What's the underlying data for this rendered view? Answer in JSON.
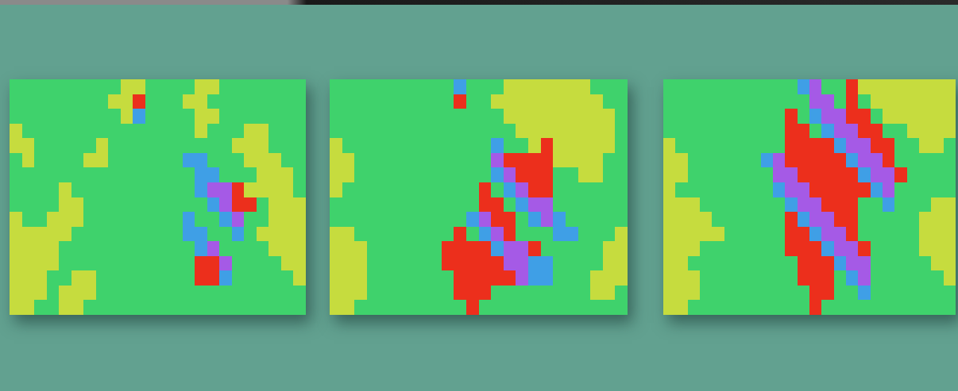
{
  "chart_data": [
    {
      "type": "heatmap",
      "tick_labels": false,
      "colors": [
        "#3fd26c",
        "#c6dc3e",
        "#3f9fe6",
        "#a55ae6",
        "#ec2f1c"
      ],
      "cells": [
        [
          0,
          0,
          0,
          0,
          0,
          0,
          0,
          0,
          0,
          1,
          1,
          0,
          0,
          0,
          0,
          1,
          1,
          0,
          0,
          0,
          0,
          0,
          0,
          0
        ],
        [
          0,
          0,
          0,
          0,
          0,
          0,
          0,
          0,
          1,
          1,
          4,
          0,
          0,
          0,
          1,
          1,
          0,
          0,
          0,
          0,
          0,
          0,
          0,
          0
        ],
        [
          0,
          0,
          0,
          0,
          0,
          0,
          0,
          0,
          0,
          1,
          2,
          0,
          0,
          0,
          0,
          1,
          1,
          0,
          0,
          0,
          0,
          0,
          0,
          0
        ],
        [
          1,
          0,
          0,
          0,
          0,
          0,
          0,
          0,
          0,
          0,
          0,
          0,
          0,
          0,
          0,
          1,
          0,
          0,
          0,
          1,
          1,
          0,
          0,
          0
        ],
        [
          1,
          1,
          0,
          0,
          0,
          0,
          0,
          1,
          0,
          0,
          0,
          0,
          0,
          0,
          0,
          0,
          0,
          0,
          1,
          1,
          1,
          0,
          0,
          0
        ],
        [
          0,
          1,
          0,
          0,
          0,
          0,
          1,
          1,
          0,
          0,
          0,
          0,
          0,
          0,
          2,
          2,
          0,
          0,
          0,
          1,
          1,
          1,
          0,
          0
        ],
        [
          0,
          0,
          0,
          0,
          0,
          0,
          0,
          0,
          0,
          0,
          0,
          0,
          0,
          0,
          0,
          2,
          2,
          0,
          0,
          0,
          1,
          1,
          1,
          0
        ],
        [
          0,
          0,
          0,
          0,
          1,
          0,
          0,
          0,
          0,
          0,
          0,
          0,
          0,
          0,
          0,
          2,
          3,
          3,
          4,
          1,
          1,
          1,
          1,
          0
        ],
        [
          0,
          0,
          0,
          0,
          1,
          1,
          0,
          0,
          0,
          0,
          0,
          0,
          0,
          0,
          0,
          0,
          2,
          3,
          4,
          4,
          0,
          1,
          1,
          1
        ],
        [
          1,
          0,
          0,
          1,
          1,
          1,
          0,
          0,
          0,
          0,
          0,
          0,
          0,
          0,
          2,
          0,
          0,
          2,
          3,
          0,
          0,
          1,
          1,
          1
        ],
        [
          1,
          1,
          1,
          1,
          1,
          0,
          0,
          0,
          0,
          0,
          0,
          0,
          0,
          0,
          2,
          2,
          0,
          0,
          2,
          0,
          1,
          1,
          1,
          1
        ],
        [
          1,
          1,
          1,
          1,
          0,
          0,
          0,
          0,
          0,
          0,
          0,
          0,
          0,
          0,
          0,
          2,
          3,
          0,
          0,
          0,
          0,
          1,
          1,
          1
        ],
        [
          1,
          1,
          1,
          1,
          0,
          0,
          0,
          0,
          0,
          0,
          0,
          0,
          0,
          0,
          0,
          4,
          4,
          3,
          0,
          0,
          0,
          0,
          1,
          1
        ],
        [
          1,
          1,
          1,
          0,
          0,
          1,
          1,
          0,
          0,
          0,
          0,
          0,
          0,
          0,
          0,
          4,
          4,
          2,
          0,
          0,
          0,
          0,
          0,
          1
        ],
        [
          1,
          1,
          1,
          0,
          1,
          1,
          1,
          0,
          0,
          0,
          0,
          0,
          0,
          0,
          0,
          0,
          0,
          0,
          0,
          0,
          0,
          0,
          0,
          0
        ],
        [
          1,
          1,
          0,
          0,
          1,
          1,
          0,
          0,
          0,
          0,
          0,
          0,
          0,
          0,
          0,
          0,
          0,
          0,
          0,
          0,
          0,
          0,
          0,
          0
        ]
      ]
    },
    {
      "type": "heatmap",
      "tick_labels": false,
      "colors": [
        "#3fd26c",
        "#c6dc3e",
        "#3f9fe6",
        "#a55ae6",
        "#ec2f1c"
      ],
      "cells": [
        [
          0,
          0,
          0,
          0,
          0,
          0,
          0,
          0,
          0,
          0,
          2,
          0,
          0,
          0,
          1,
          1,
          1,
          1,
          1,
          1,
          1,
          0,
          0,
          0
        ],
        [
          0,
          0,
          0,
          0,
          0,
          0,
          0,
          0,
          0,
          0,
          4,
          0,
          0,
          1,
          1,
          1,
          1,
          1,
          1,
          1,
          1,
          1,
          0,
          0
        ],
        [
          0,
          0,
          0,
          0,
          0,
          0,
          0,
          0,
          0,
          0,
          0,
          0,
          0,
          0,
          1,
          1,
          1,
          1,
          1,
          1,
          1,
          1,
          1,
          0
        ],
        [
          0,
          0,
          0,
          0,
          0,
          0,
          0,
          0,
          0,
          0,
          0,
          0,
          0,
          0,
          0,
          1,
          1,
          1,
          1,
          1,
          1,
          1,
          1,
          0
        ],
        [
          1,
          0,
          0,
          0,
          0,
          0,
          0,
          0,
          0,
          0,
          0,
          0,
          0,
          2,
          0,
          0,
          1,
          4,
          1,
          1,
          1,
          1,
          1,
          0
        ],
        [
          1,
          1,
          0,
          0,
          0,
          0,
          0,
          0,
          0,
          0,
          0,
          0,
          0,
          3,
          4,
          4,
          4,
          4,
          1,
          1,
          1,
          1,
          0,
          0
        ],
        [
          1,
          1,
          0,
          0,
          0,
          0,
          0,
          0,
          0,
          0,
          0,
          0,
          0,
          2,
          3,
          4,
          4,
          4,
          0,
          0,
          1,
          1,
          0,
          0
        ],
        [
          1,
          0,
          0,
          0,
          0,
          0,
          0,
          0,
          0,
          0,
          0,
          0,
          4,
          0,
          2,
          3,
          4,
          4,
          0,
          0,
          0,
          0,
          0,
          0
        ],
        [
          0,
          0,
          0,
          0,
          0,
          0,
          0,
          0,
          0,
          0,
          0,
          0,
          4,
          4,
          0,
          2,
          3,
          3,
          0,
          0,
          0,
          0,
          0,
          0
        ],
        [
          0,
          0,
          0,
          0,
          0,
          0,
          0,
          0,
          0,
          0,
          0,
          2,
          3,
          4,
          4,
          0,
          2,
          3,
          2,
          0,
          0,
          0,
          0,
          0
        ],
        [
          1,
          1,
          0,
          0,
          0,
          0,
          0,
          0,
          0,
          0,
          4,
          0,
          2,
          3,
          4,
          0,
          0,
          0,
          2,
          2,
          0,
          0,
          0,
          1
        ],
        [
          1,
          1,
          1,
          0,
          0,
          0,
          0,
          0,
          0,
          4,
          4,
          4,
          4,
          2,
          3,
          3,
          4,
          0,
          0,
          0,
          0,
          0,
          1,
          1
        ],
        [
          1,
          1,
          1,
          0,
          0,
          0,
          0,
          0,
          0,
          4,
          4,
          4,
          4,
          4,
          3,
          3,
          2,
          2,
          0,
          0,
          0,
          0,
          1,
          1
        ],
        [
          1,
          1,
          1,
          0,
          0,
          0,
          0,
          0,
          0,
          0,
          4,
          4,
          4,
          4,
          4,
          3,
          2,
          2,
          0,
          0,
          0,
          1,
          1,
          1
        ],
        [
          1,
          1,
          1,
          0,
          0,
          0,
          0,
          0,
          0,
          0,
          4,
          4,
          4,
          0,
          0,
          0,
          0,
          0,
          0,
          0,
          0,
          1,
          1,
          0
        ],
        [
          1,
          1,
          0,
          0,
          0,
          0,
          0,
          0,
          0,
          0,
          0,
          4,
          0,
          0,
          0,
          0,
          0,
          0,
          0,
          0,
          0,
          0,
          0,
          0
        ]
      ]
    },
    {
      "type": "heatmap",
      "tick_labels": false,
      "colors": [
        "#3fd26c",
        "#c6dc3e",
        "#3f9fe6",
        "#a55ae6",
        "#ec2f1c"
      ],
      "cells": [
        [
          0,
          0,
          0,
          0,
          0,
          0,
          0,
          0,
          0,
          0,
          0,
          2,
          3,
          0,
          0,
          4,
          1,
          1,
          1,
          1,
          1,
          1,
          1,
          1
        ],
        [
          0,
          0,
          0,
          0,
          0,
          0,
          0,
          0,
          0,
          0,
          0,
          0,
          3,
          3,
          0,
          4,
          0,
          1,
          1,
          1,
          1,
          1,
          1,
          1
        ],
        [
          0,
          0,
          0,
          0,
          0,
          0,
          0,
          0,
          0,
          0,
          4,
          0,
          2,
          3,
          3,
          4,
          4,
          0,
          1,
          1,
          1,
          1,
          1,
          1
        ],
        [
          0,
          0,
          0,
          0,
          0,
          0,
          0,
          0,
          0,
          0,
          4,
          4,
          0,
          2,
          3,
          3,
          4,
          4,
          0,
          0,
          1,
          1,
          1,
          1
        ],
        [
          1,
          0,
          0,
          0,
          0,
          0,
          0,
          0,
          0,
          0,
          4,
          4,
          4,
          4,
          2,
          3,
          3,
          4,
          4,
          0,
          0,
          1,
          1,
          0
        ],
        [
          1,
          1,
          0,
          0,
          0,
          0,
          0,
          0,
          2,
          3,
          4,
          4,
          4,
          4,
          4,
          2,
          3,
          3,
          4,
          0,
          0,
          0,
          0,
          0
        ],
        [
          1,
          1,
          0,
          0,
          0,
          0,
          0,
          0,
          0,
          3,
          3,
          4,
          4,
          4,
          4,
          4,
          2,
          3,
          3,
          4,
          0,
          0,
          0,
          0
        ],
        [
          1,
          0,
          0,
          0,
          0,
          0,
          0,
          0,
          0,
          2,
          3,
          3,
          4,
          4,
          4,
          4,
          4,
          2,
          3,
          0,
          0,
          0,
          0,
          0
        ],
        [
          1,
          1,
          1,
          0,
          0,
          0,
          0,
          0,
          0,
          0,
          2,
          3,
          3,
          4,
          4,
          4,
          0,
          0,
          2,
          0,
          0,
          0,
          1,
          1
        ],
        [
          1,
          1,
          1,
          1,
          0,
          0,
          0,
          0,
          0,
          0,
          4,
          2,
          3,
          3,
          4,
          4,
          0,
          0,
          0,
          0,
          0,
          1,
          1,
          1
        ],
        [
          1,
          1,
          1,
          1,
          1,
          0,
          0,
          0,
          0,
          0,
          4,
          4,
          2,
          3,
          3,
          4,
          0,
          0,
          0,
          0,
          0,
          1,
          1,
          1
        ],
        [
          1,
          1,
          1,
          0,
          0,
          0,
          0,
          0,
          0,
          0,
          4,
          4,
          4,
          2,
          3,
          3,
          4,
          0,
          0,
          0,
          0,
          1,
          1,
          1
        ],
        [
          1,
          1,
          0,
          0,
          0,
          0,
          0,
          0,
          0,
          0,
          0,
          4,
          4,
          4,
          2,
          3,
          3,
          0,
          0,
          0,
          0,
          0,
          1,
          1
        ],
        [
          1,
          1,
          1,
          0,
          0,
          0,
          0,
          0,
          0,
          0,
          0,
          4,
          4,
          4,
          0,
          2,
          3,
          0,
          0,
          0,
          0,
          0,
          0,
          1
        ],
        [
          1,
          1,
          1,
          0,
          0,
          0,
          0,
          0,
          0,
          0,
          0,
          0,
          4,
          4,
          0,
          0,
          2,
          0,
          0,
          0,
          0,
          0,
          0,
          0
        ],
        [
          1,
          1,
          0,
          0,
          0,
          0,
          0,
          0,
          0,
          0,
          0,
          0,
          4,
          0,
          0,
          0,
          0,
          0,
          0,
          0,
          0,
          0,
          0,
          0
        ]
      ]
    }
  ]
}
